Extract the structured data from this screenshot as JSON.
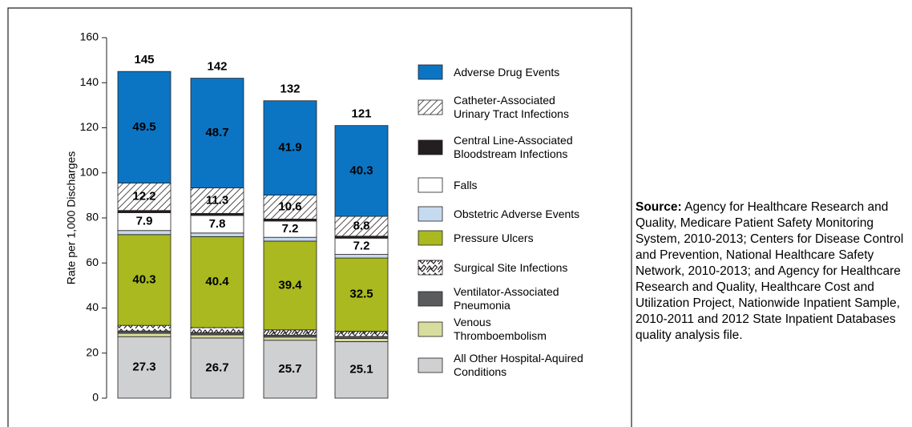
{
  "chart_data": {
    "type": "stacked_bar",
    "y_label": "Rate per 1,000 Discharges",
    "categories": [
      null,
      null,
      null,
      null
    ],
    "ylim": [
      0,
      160
    ],
    "yticks": [
      0,
      20,
      40,
      60,
      80,
      100,
      120,
      140,
      160
    ],
    "grid": false,
    "totals": [
      145,
      142,
      132,
      121
    ],
    "series": [
      {
        "name": "All Other Hospital-Aquired Conditions",
        "color": "#cfd0d2",
        "values": [
          27.3,
          26.7,
          25.7,
          25.1
        ],
        "show_labels": true,
        "label_color": "#000000"
      },
      {
        "name": "Venous Thromboembolism",
        "color": "#d7dd9c",
        "values": [
          1.5,
          1.4,
          1.4,
          1.4
        ]
      },
      {
        "name": "Ventilator-Associated Pneumonia",
        "color": "#5a5b5d",
        "values": [
          1.0,
          0.9,
          0.9,
          0.9
        ]
      },
      {
        "name": "Surgical Site Infections",
        "color": "#ffffff",
        "pattern": "squiggle",
        "values": [
          2.5,
          2.3,
          2.3,
          2.3
        ]
      },
      {
        "name": "Pressure Ulcers",
        "color": "#a9b91f",
        "values": [
          40.3,
          40.4,
          39.4,
          32.5
        ],
        "show_labels": true,
        "label_color": "#000000"
      },
      {
        "name": "Obstetric Adverse Events",
        "color": "#c6daef",
        "values": [
          1.8,
          1.6,
          1.7,
          1.6
        ]
      },
      {
        "name": "Falls",
        "color": "#ffffff",
        "values": [
          7.9,
          7.8,
          7.2,
          7.2
        ],
        "show_labels": true,
        "label_color": "#000000"
      },
      {
        "name": "Central Line-Associated Bloodstream Infections",
        "color": "#231f20",
        "values": [
          1.0,
          0.9,
          0.9,
          0.9
        ]
      },
      {
        "name": "Catheter-Associated Urinary Tract Infections",
        "color": "#ffffff",
        "pattern": "hatch",
        "values": [
          12.2,
          11.3,
          10.6,
          8.8
        ],
        "show_labels": true,
        "label_color": "#000000"
      },
      {
        "name": "Adverse Drug Events",
        "color": "#0b75c3",
        "values": [
          49.5,
          48.7,
          41.9,
          40.3
        ],
        "show_labels": true,
        "label_color": "#ffffff"
      }
    ]
  },
  "source": {
    "label": "Source:",
    "text": "Agency for Healthcare Research and Quality, Medicare Patient Safety Monitoring System, 2010-2013; Centers for Disease Control and Prevention, National Healthcare Safety Network, 2010-2013; and Agency for Healthcare Research and Quality, Healthcare Cost and Utilization Project, Nationwide Inpatient Sample, 2010-2011 and 2012 State Inpatient Databases quality analysis file."
  }
}
